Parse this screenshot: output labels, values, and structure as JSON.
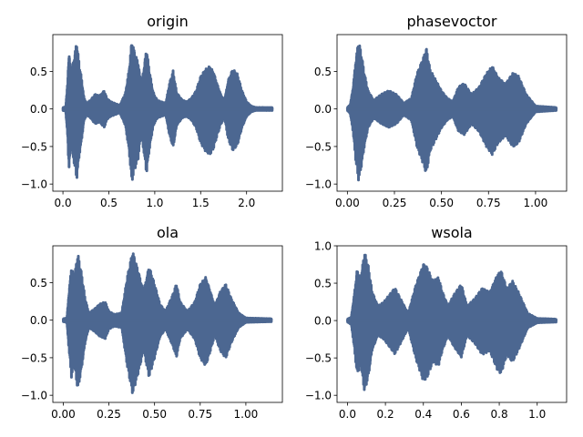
{
  "chart_data": [
    {
      "type": "line",
      "title": "origin",
      "xlabel": "",
      "ylabel": "",
      "xlim": [
        -0.11,
        2.39
      ],
      "ylim": [
        -1.095,
        0.99
      ],
      "xticks": [
        0.0,
        0.5,
        1.0,
        1.5,
        2.0
      ],
      "xtick_labels": [
        "0.0",
        "0.5",
        "1.0",
        "1.5",
        "2.0"
      ],
      "yticks": [
        -1.0,
        -0.5,
        0.0,
        0.5
      ],
      "ytick_labels": [
        "−1.0",
        "−0.5",
        "0.0",
        "0.5"
      ],
      "duration": 2.28,
      "envelope": [
        [
          0.0,
          0.02
        ],
        [
          0.03,
          0.03
        ],
        [
          0.05,
          0.35
        ],
        [
          0.065,
          0.8
        ],
        [
          0.09,
          0.5
        ],
        [
          0.12,
          0.7
        ],
        [
          0.15,
          0.93
        ],
        [
          0.18,
          0.6
        ],
        [
          0.2,
          0.45
        ],
        [
          0.23,
          0.15
        ],
        [
          0.26,
          0.08
        ],
        [
          0.3,
          0.12
        ],
        [
          0.35,
          0.2
        ],
        [
          0.4,
          0.18
        ],
        [
          0.45,
          0.25
        ],
        [
          0.48,
          0.14
        ],
        [
          0.52,
          0.1
        ],
        [
          0.56,
          0.08
        ],
        [
          0.62,
          0.05
        ],
        [
          0.68,
          0.22
        ],
        [
          0.72,
          0.55
        ],
        [
          0.75,
          0.96
        ],
        [
          0.78,
          0.8
        ],
        [
          0.82,
          0.65
        ],
        [
          0.85,
          0.35
        ],
        [
          0.88,
          0.55
        ],
        [
          0.91,
          0.85
        ],
        [
          0.94,
          0.55
        ],
        [
          0.98,
          0.25
        ],
        [
          1.0,
          0.18
        ],
        [
          1.03,
          0.12
        ],
        [
          1.07,
          0.1
        ],
        [
          1.12,
          0.08
        ],
        [
          1.16,
          0.35
        ],
        [
          1.2,
          0.52
        ],
        [
          1.24,
          0.22
        ],
        [
          1.3,
          0.12
        ],
        [
          1.35,
          0.1
        ],
        [
          1.4,
          0.15
        ],
        [
          1.45,
          0.25
        ],
        [
          1.5,
          0.45
        ],
        [
          1.55,
          0.55
        ],
        [
          1.6,
          0.6
        ],
        [
          1.64,
          0.52
        ],
        [
          1.68,
          0.35
        ],
        [
          1.72,
          0.2
        ],
        [
          1.76,
          0.12
        ],
        [
          1.8,
          0.4
        ],
        [
          1.85,
          0.55
        ],
        [
          1.9,
          0.48
        ],
        [
          1.95,
          0.25
        ],
        [
          2.0,
          0.1
        ],
        [
          2.05,
          0.04
        ],
        [
          2.1,
          0.02
        ],
        [
          2.28,
          0.02
        ]
      ],
      "series_color": "#4c6791"
    },
    {
      "type": "line",
      "title": "phasevoctor",
      "xlabel": "",
      "ylabel": "",
      "xlim": [
        -0.055,
        1.165
      ],
      "ylim": [
        -1.095,
        0.99
      ],
      "xticks": [
        0.0,
        0.25,
        0.5,
        0.75,
        1.0
      ],
      "xtick_labels": [
        "0.00",
        "0.25",
        "0.50",
        "0.75",
        "1.00"
      ],
      "yticks": [
        -1.0,
        -0.5,
        0.0,
        0.5
      ],
      "ytick_labels": [
        "−1.0",
        "−0.5",
        "0.0",
        "0.5"
      ],
      "duration": 1.11,
      "envelope": [
        [
          0.0,
          0.02
        ],
        [
          0.015,
          0.06
        ],
        [
          0.03,
          0.3
        ],
        [
          0.045,
          0.7
        ],
        [
          0.06,
          0.95
        ],
        [
          0.075,
          0.75
        ],
        [
          0.09,
          0.5
        ],
        [
          0.11,
          0.25
        ],
        [
          0.14,
          0.12
        ],
        [
          0.18,
          0.2
        ],
        [
          0.22,
          0.25
        ],
        [
          0.26,
          0.2
        ],
        [
          0.3,
          0.08
        ],
        [
          0.34,
          0.15
        ],
        [
          0.37,
          0.5
        ],
        [
          0.4,
          0.7
        ],
        [
          0.42,
          0.85
        ],
        [
          0.44,
          0.55
        ],
        [
          0.47,
          0.4
        ],
        [
          0.5,
          0.25
        ],
        [
          0.53,
          0.15
        ],
        [
          0.56,
          0.1
        ],
        [
          0.59,
          0.3
        ],
        [
          0.62,
          0.35
        ],
        [
          0.66,
          0.2
        ],
        [
          0.7,
          0.3
        ],
        [
          0.74,
          0.5
        ],
        [
          0.77,
          0.6
        ],
        [
          0.8,
          0.45
        ],
        [
          0.84,
          0.35
        ],
        [
          0.88,
          0.5
        ],
        [
          0.91,
          0.45
        ],
        [
          0.95,
          0.2
        ],
        [
          1.0,
          0.04
        ],
        [
          1.11,
          0.02
        ]
      ],
      "series_color": "#4c6791"
    },
    {
      "type": "line",
      "title": "ola",
      "xlabel": "",
      "ylabel": "",
      "xlim": [
        -0.057,
        1.2
      ],
      "ylim": [
        -1.095,
        0.99
      ],
      "xticks": [
        0.0,
        0.25,
        0.5,
        0.75,
        1.0
      ],
      "xtick_labels": [
        "0.00",
        "0.25",
        "0.50",
        "0.75",
        "1.00"
      ],
      "yticks": [
        -1.0,
        -0.5,
        0.0,
        0.5
      ],
      "ytick_labels": [
        "−1.0",
        "−0.5",
        "0.0",
        "0.5"
      ],
      "duration": 1.14,
      "envelope": [
        [
          0.0,
          0.02
        ],
        [
          0.02,
          0.03
        ],
        [
          0.03,
          0.35
        ],
        [
          0.045,
          0.75
        ],
        [
          0.06,
          0.6
        ],
        [
          0.08,
          0.92
        ],
        [
          0.1,
          0.65
        ],
        [
          0.12,
          0.3
        ],
        [
          0.14,
          0.1
        ],
        [
          0.17,
          0.15
        ],
        [
          0.2,
          0.22
        ],
        [
          0.23,
          0.25
        ],
        [
          0.25,
          0.12
        ],
        [
          0.28,
          0.08
        ],
        [
          0.32,
          0.1
        ],
        [
          0.35,
          0.6
        ],
        [
          0.38,
          0.97
        ],
        [
          0.41,
          0.7
        ],
        [
          0.44,
          0.4
        ],
        [
          0.47,
          0.75
        ],
        [
          0.5,
          0.5
        ],
        [
          0.53,
          0.22
        ],
        [
          0.56,
          0.12
        ],
        [
          0.6,
          0.35
        ],
        [
          0.62,
          0.5
        ],
        [
          0.64,
          0.25
        ],
        [
          0.68,
          0.12
        ],
        [
          0.72,
          0.25
        ],
        [
          0.75,
          0.5
        ],
        [
          0.78,
          0.6
        ],
        [
          0.8,
          0.45
        ],
        [
          0.83,
          0.2
        ],
        [
          0.86,
          0.4
        ],
        [
          0.89,
          0.5
        ],
        [
          0.92,
          0.3
        ],
        [
          0.96,
          0.1
        ],
        [
          1.0,
          0.03
        ],
        [
          1.14,
          0.02
        ]
      ],
      "series_color": "#4c6791"
    },
    {
      "type": "line",
      "title": "wsola",
      "xlabel": "",
      "ylabel": "",
      "xlim": [
        -0.055,
        1.155
      ],
      "ylim": [
        -1.095,
        1.0
      ],
      "xticks": [
        0.0,
        0.2,
        0.4,
        0.6,
        0.8,
        1.0
      ],
      "xtick_labels": [
        "0.0",
        "0.2",
        "0.4",
        "0.6",
        "0.8",
        "1.0"
      ],
      "yticks": [
        -1.0,
        -0.5,
        0.0,
        0.5,
        1.0
      ],
      "ytick_labels": [
        "−1.0",
        "−0.5",
        "0.0",
        "0.5",
        "1.0"
      ],
      "duration": 1.1,
      "envelope": [
        [
          0.0,
          0.02
        ],
        [
          0.02,
          0.05
        ],
        [
          0.035,
          0.35
        ],
        [
          0.05,
          0.7
        ],
        [
          0.07,
          0.6
        ],
        [
          0.09,
          0.95
        ],
        [
          0.11,
          0.75
        ],
        [
          0.13,
          0.4
        ],
        [
          0.16,
          0.2
        ],
        [
          0.19,
          0.25
        ],
        [
          0.22,
          0.35
        ],
        [
          0.25,
          0.45
        ],
        [
          0.28,
          0.3
        ],
        [
          0.32,
          0.1
        ],
        [
          0.36,
          0.5
        ],
        [
          0.4,
          0.8
        ],
        [
          0.42,
          0.75
        ],
        [
          0.45,
          0.55
        ],
        [
          0.48,
          0.6
        ],
        [
          0.5,
          0.4
        ],
        [
          0.53,
          0.2
        ],
        [
          0.56,
          0.35
        ],
        [
          0.6,
          0.5
        ],
        [
          0.63,
          0.2
        ],
        [
          0.67,
          0.3
        ],
        [
          0.71,
          0.45
        ],
        [
          0.75,
          0.4
        ],
        [
          0.79,
          0.65
        ],
        [
          0.81,
          0.7
        ],
        [
          0.84,
          0.45
        ],
        [
          0.87,
          0.55
        ],
        [
          0.9,
          0.4
        ],
        [
          0.95,
          0.1
        ],
        [
          1.0,
          0.03
        ],
        [
          1.1,
          0.02
        ]
      ],
      "series_color": "#4c6791"
    }
  ]
}
